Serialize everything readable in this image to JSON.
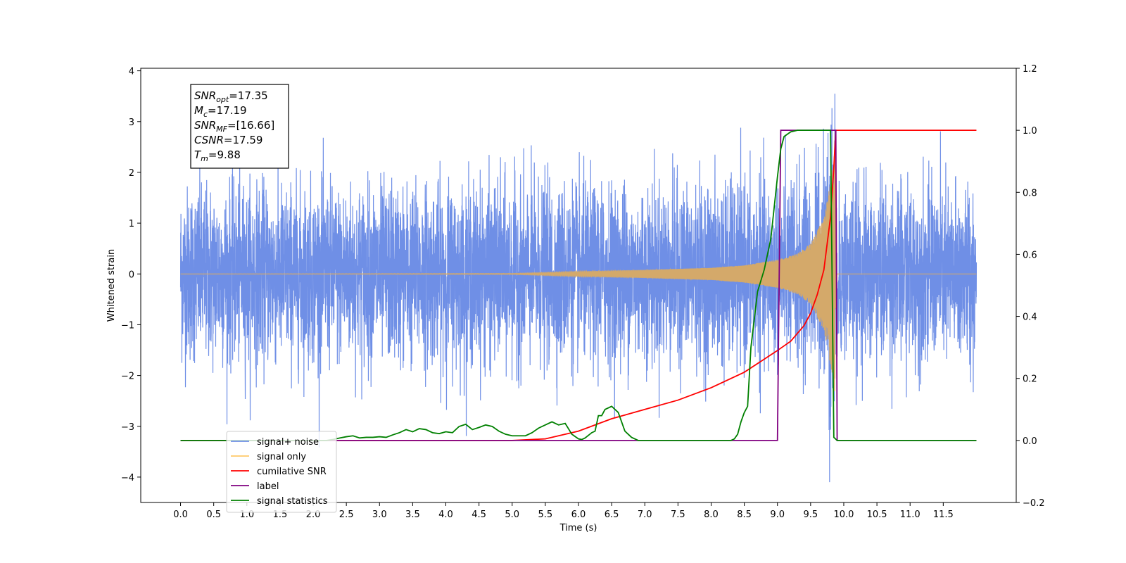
{
  "chart_data": {
    "type": "line",
    "xlabel": "Time (s)",
    "ylabel": "Whitened strain",
    "xlim": [
      -0.6,
      12.6
    ],
    "ylim": [
      -4.5,
      4.05
    ],
    "y2lim": [
      -0.2,
      1.2
    ],
    "grid": false,
    "x_ticks": [
      0.0,
      0.5,
      1.0,
      1.5,
      2.0,
      2.5,
      3.0,
      3.5,
      4.0,
      4.5,
      5.0,
      5.5,
      6.0,
      6.5,
      7.0,
      7.5,
      8.0,
      8.5,
      9.0,
      9.5,
      10.0,
      10.5,
      11.0,
      11.5
    ],
    "x_tick_labels": [
      "0.0",
      "0.5",
      "1.0",
      "1.5",
      "2.0",
      "2.5",
      "3.0",
      "3.5",
      "4.0",
      "4.5",
      "5.0",
      "5.5",
      "6.0",
      "6.5",
      "7.0",
      "7.5",
      "8.0",
      "8.5",
      "9.0",
      "9.5",
      "10.0",
      "10.5",
      "11.0",
      "11.5"
    ],
    "y_ticks": [
      4,
      3,
      2,
      1,
      0,
      -1,
      -2,
      -3,
      -4
    ],
    "y_tick_labels": [
      "4",
      "3",
      "2",
      "1",
      "0",
      "−1",
      "−2",
      "−3",
      "−4"
    ],
    "y2_ticks": [
      1.2,
      1.0,
      0.8,
      0.6,
      0.4,
      0.2,
      0.0,
      -0.2
    ],
    "y2_tick_labels": [
      "1.2",
      "1.0",
      "0.8",
      "0.6",
      "0.4",
      "0.2",
      "0.0",
      "−0.2"
    ],
    "annotation": {
      "lines": [
        {
          "sym": "SNR",
          "sub": "opt",
          "value": "=17.35"
        },
        {
          "sym": "M",
          "sub": "c",
          "value": "=17.19"
        },
        {
          "sym": "SNR",
          "sub": "MF",
          "value": "=[16.66]"
        },
        {
          "sym": "CSNR",
          "sub": "",
          "value": "=17.59"
        },
        {
          "sym": "T",
          "sub": "m",
          "value": "=9.88"
        }
      ]
    },
    "legend": {
      "placement": "lower-left",
      "entries": [
        {
          "label": "signal+ noise",
          "color": "#6f8fe6"
        },
        {
          "label": "signal only",
          "color": "#ffc96a"
        },
        {
          "label": "cumilative SNR",
          "color": "#ff0000"
        },
        {
          "label": "label",
          "color": "#800080"
        },
        {
          "label": "signal statistics",
          "color": "#008000"
        }
      ]
    },
    "series": [
      {
        "name": "signal+ noise",
        "axis": "left",
        "color": "#6f8fe6",
        "x_range": [
          0.0,
          12.0
        ],
        "noise_std": 0.85,
        "approx_range": [
          -4.1,
          3.65
        ]
      },
      {
        "name": "signal only",
        "axis": "left",
        "color": "#d4a96a",
        "x_range": [
          0.0,
          12.0
        ],
        "merger_time": 9.88,
        "envelope_x": [
          0.0,
          5.0,
          6.0,
          7.0,
          8.0,
          8.5,
          9.0,
          9.3,
          9.5,
          9.7,
          9.8,
          9.88,
          9.9
        ],
        "envelope_y": [
          0.0,
          0.01,
          0.05,
          0.08,
          0.12,
          0.17,
          0.28,
          0.4,
          0.6,
          1.1,
          1.8,
          2.7,
          0.0
        ]
      },
      {
        "name": "cumilative SNR",
        "axis": "right",
        "color": "#ff0000",
        "x": [
          0.0,
          5.0,
          5.5,
          6.0,
          6.5,
          7.0,
          7.5,
          8.0,
          8.5,
          9.0,
          9.2,
          9.4,
          9.5,
          9.6,
          9.7,
          9.8,
          9.85,
          9.88,
          9.89,
          12.0
        ],
        "y": [
          0.0,
          0.0,
          0.005,
          0.03,
          0.07,
          0.1,
          0.13,
          0.17,
          0.22,
          0.29,
          0.32,
          0.37,
          0.41,
          0.47,
          0.55,
          0.72,
          0.88,
          1.0,
          1.0,
          1.0
        ]
      },
      {
        "name": "label",
        "axis": "right",
        "color": "#800080",
        "x": [
          0.0,
          9.0,
          9.05,
          9.88,
          9.9,
          12.0
        ],
        "y": [
          0.0,
          0.0,
          1.0,
          1.0,
          0.0,
          0.0
        ]
      },
      {
        "name": "signal statistics",
        "axis": "right",
        "color": "#008000",
        "x": [
          0.0,
          2.2,
          2.3,
          2.4,
          2.5,
          2.6,
          2.7,
          2.8,
          2.9,
          3.0,
          3.1,
          3.2,
          3.3,
          3.4,
          3.5,
          3.6,
          3.7,
          3.8,
          3.9,
          4.0,
          4.1,
          4.2,
          4.3,
          4.4,
          4.5,
          4.6,
          4.7,
          4.8,
          4.9,
          5.0,
          5.1,
          5.2,
          5.3,
          5.4,
          5.5,
          5.6,
          5.7,
          5.8,
          5.9,
          6.0,
          6.05,
          6.1,
          6.2,
          6.25,
          6.3,
          6.35,
          6.4,
          6.5,
          6.6,
          6.65,
          6.7,
          6.8,
          6.9,
          7.0,
          8.3,
          8.35,
          8.4,
          8.45,
          8.5,
          8.55,
          8.6,
          8.7,
          8.8,
          8.9,
          9.0,
          9.05,
          9.1,
          9.2,
          9.3,
          9.5,
          9.8,
          9.85,
          9.9,
          12.0
        ],
        "y": [
          0.0,
          0.0,
          0.003,
          0.008,
          0.012,
          0.015,
          0.008,
          0.01,
          0.01,
          0.012,
          0.01,
          0.018,
          0.025,
          0.035,
          0.028,
          0.038,
          0.035,
          0.025,
          0.022,
          0.028,
          0.025,
          0.045,
          0.052,
          0.035,
          0.042,
          0.05,
          0.045,
          0.03,
          0.02,
          0.015,
          0.015,
          0.015,
          0.025,
          0.04,
          0.05,
          0.06,
          0.05,
          0.055,
          0.02,
          0.005,
          0.003,
          0.008,
          0.025,
          0.03,
          0.08,
          0.08,
          0.1,
          0.11,
          0.09,
          0.06,
          0.03,
          0.01,
          0.0,
          0.0,
          0.0,
          0.005,
          0.02,
          0.06,
          0.09,
          0.11,
          0.3,
          0.48,
          0.55,
          0.65,
          0.85,
          0.94,
          0.98,
          0.995,
          1.0,
          1.0,
          1.0,
          0.01,
          0.0,
          0.0
        ]
      }
    ]
  }
}
